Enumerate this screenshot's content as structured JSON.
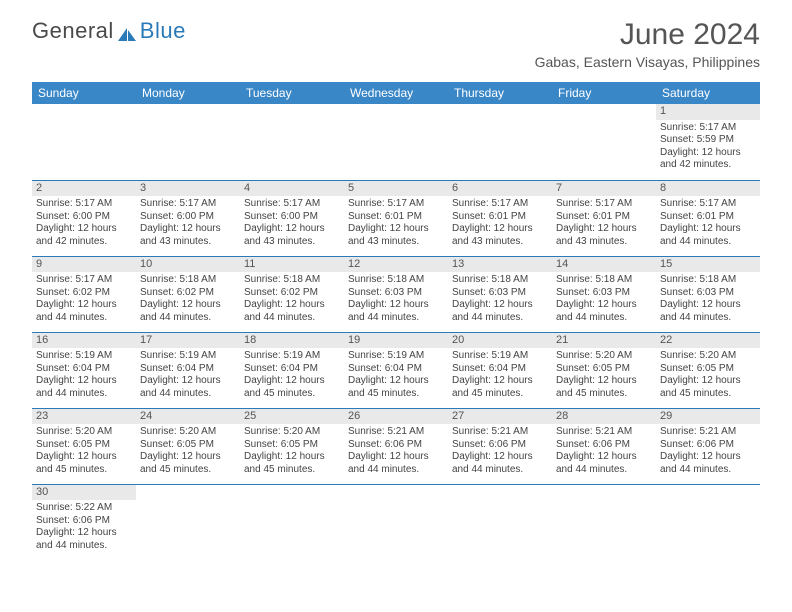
{
  "brand": {
    "part1": "General",
    "part2": "Blue"
  },
  "title": "June 2024",
  "location": "Gabas, Eastern Visayas, Philippines",
  "colors": {
    "header_bg": "#3a87c8",
    "rule": "#2a7ab8",
    "daybar": "#e9e9e9",
    "text": "#555555"
  },
  "dow": [
    "Sunday",
    "Monday",
    "Tuesday",
    "Wednesday",
    "Thursday",
    "Friday",
    "Saturday"
  ],
  "weeks": [
    [
      null,
      null,
      null,
      null,
      null,
      null,
      {
        "n": "1",
        "sr": "5:17 AM",
        "ss": "5:59 PM",
        "dl": "12 hours and 42 minutes."
      }
    ],
    [
      {
        "n": "2",
        "sr": "5:17 AM",
        "ss": "6:00 PM",
        "dl": "12 hours and 42 minutes."
      },
      {
        "n": "3",
        "sr": "5:17 AM",
        "ss": "6:00 PM",
        "dl": "12 hours and 43 minutes."
      },
      {
        "n": "4",
        "sr": "5:17 AM",
        "ss": "6:00 PM",
        "dl": "12 hours and 43 minutes."
      },
      {
        "n": "5",
        "sr": "5:17 AM",
        "ss": "6:01 PM",
        "dl": "12 hours and 43 minutes."
      },
      {
        "n": "6",
        "sr": "5:17 AM",
        "ss": "6:01 PM",
        "dl": "12 hours and 43 minutes."
      },
      {
        "n": "7",
        "sr": "5:17 AM",
        "ss": "6:01 PM",
        "dl": "12 hours and 43 minutes."
      },
      {
        "n": "8",
        "sr": "5:17 AM",
        "ss": "6:01 PM",
        "dl": "12 hours and 44 minutes."
      }
    ],
    [
      {
        "n": "9",
        "sr": "5:17 AM",
        "ss": "6:02 PM",
        "dl": "12 hours and 44 minutes."
      },
      {
        "n": "10",
        "sr": "5:18 AM",
        "ss": "6:02 PM",
        "dl": "12 hours and 44 minutes."
      },
      {
        "n": "11",
        "sr": "5:18 AM",
        "ss": "6:02 PM",
        "dl": "12 hours and 44 minutes."
      },
      {
        "n": "12",
        "sr": "5:18 AM",
        "ss": "6:03 PM",
        "dl": "12 hours and 44 minutes."
      },
      {
        "n": "13",
        "sr": "5:18 AM",
        "ss": "6:03 PM",
        "dl": "12 hours and 44 minutes."
      },
      {
        "n": "14",
        "sr": "5:18 AM",
        "ss": "6:03 PM",
        "dl": "12 hours and 44 minutes."
      },
      {
        "n": "15",
        "sr": "5:18 AM",
        "ss": "6:03 PM",
        "dl": "12 hours and 44 minutes."
      }
    ],
    [
      {
        "n": "16",
        "sr": "5:19 AM",
        "ss": "6:04 PM",
        "dl": "12 hours and 44 minutes."
      },
      {
        "n": "17",
        "sr": "5:19 AM",
        "ss": "6:04 PM",
        "dl": "12 hours and 44 minutes."
      },
      {
        "n": "18",
        "sr": "5:19 AM",
        "ss": "6:04 PM",
        "dl": "12 hours and 45 minutes."
      },
      {
        "n": "19",
        "sr": "5:19 AM",
        "ss": "6:04 PM",
        "dl": "12 hours and 45 minutes."
      },
      {
        "n": "20",
        "sr": "5:19 AM",
        "ss": "6:04 PM",
        "dl": "12 hours and 45 minutes."
      },
      {
        "n": "21",
        "sr": "5:20 AM",
        "ss": "6:05 PM",
        "dl": "12 hours and 45 minutes."
      },
      {
        "n": "22",
        "sr": "5:20 AM",
        "ss": "6:05 PM",
        "dl": "12 hours and 45 minutes."
      }
    ],
    [
      {
        "n": "23",
        "sr": "5:20 AM",
        "ss": "6:05 PM",
        "dl": "12 hours and 45 minutes."
      },
      {
        "n": "24",
        "sr": "5:20 AM",
        "ss": "6:05 PM",
        "dl": "12 hours and 45 minutes."
      },
      {
        "n": "25",
        "sr": "5:20 AM",
        "ss": "6:05 PM",
        "dl": "12 hours and 45 minutes."
      },
      {
        "n": "26",
        "sr": "5:21 AM",
        "ss": "6:06 PM",
        "dl": "12 hours and 44 minutes."
      },
      {
        "n": "27",
        "sr": "5:21 AM",
        "ss": "6:06 PM",
        "dl": "12 hours and 44 minutes."
      },
      {
        "n": "28",
        "sr": "5:21 AM",
        "ss": "6:06 PM",
        "dl": "12 hours and 44 minutes."
      },
      {
        "n": "29",
        "sr": "5:21 AM",
        "ss": "6:06 PM",
        "dl": "12 hours and 44 minutes."
      }
    ],
    [
      {
        "n": "30",
        "sr": "5:22 AM",
        "ss": "6:06 PM",
        "dl": "12 hours and 44 minutes."
      },
      null,
      null,
      null,
      null,
      null,
      null
    ]
  ],
  "labels": {
    "sunrise": "Sunrise: ",
    "sunset": "Sunset: ",
    "daylight": "Daylight: "
  }
}
